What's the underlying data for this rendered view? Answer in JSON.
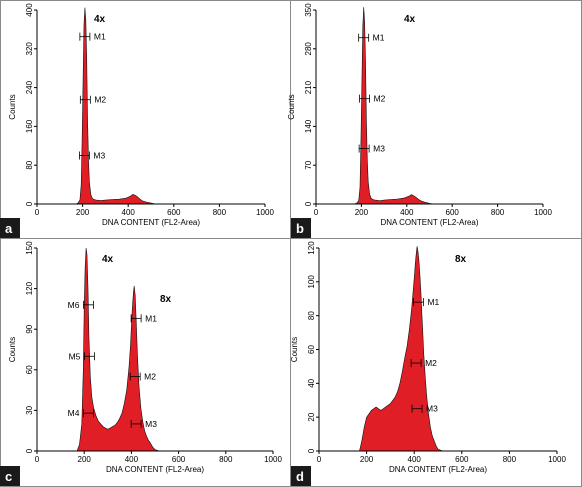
{
  "chart_data": [
    {
      "panel": "a",
      "type": "area",
      "xlabel": "DNA CONTENT (FL2-Area)",
      "ylabel": "Counts",
      "xlim": [
        0,
        1000
      ],
      "ylim": [
        0,
        400
      ],
      "x_ticks": [
        0,
        200,
        400,
        600,
        800,
        1000
      ],
      "y_ticks": [
        0,
        80,
        160,
        240,
        320,
        400
      ],
      "annotations": [
        "4x"
      ],
      "series": [
        {
          "x": [
            170,
            180,
            188,
            194,
            198,
            202,
            206,
            210,
            214,
            218,
            222,
            226,
            230,
            236,
            242,
            250,
            260,
            280,
            300,
            330,
            360,
            390,
            410,
            420,
            430,
            440,
            450,
            460,
            480,
            500,
            520
          ],
          "y": [
            0,
            2,
            8,
            40,
            130,
            260,
            370,
            405,
            380,
            300,
            170,
            90,
            45,
            20,
            12,
            9,
            8,
            7,
            8,
            9,
            10,
            12,
            16,
            20,
            18,
            15,
            11,
            7,
            4,
            2,
            0
          ]
        }
      ],
      "markers": [
        {
          "label": "M1",
          "x": 210,
          "y": 345
        },
        {
          "label": "M2",
          "x": 212,
          "y": 215
        },
        {
          "label": "M3",
          "x": 208,
          "y": 100
        }
      ]
    },
    {
      "panel": "b",
      "type": "area",
      "xlabel": "DNA CONTENT (FL2-Area)",
      "ylabel": "Counts",
      "xlim": [
        0,
        1000
      ],
      "ylim": [
        0,
        350
      ],
      "x_ticks": [
        0,
        200,
        400,
        600,
        800,
        1000
      ],
      "y_ticks": [
        0,
        70,
        140,
        210,
        280,
        350
      ],
      "annotations": [
        "4x"
      ],
      "series": [
        {
          "x": [
            170,
            180,
            188,
            194,
            198,
            202,
            206,
            210,
            214,
            218,
            222,
            226,
            230,
            236,
            242,
            250,
            260,
            280,
            300,
            330,
            360,
            390,
            410,
            420,
            430,
            440,
            450,
            460,
            480,
            500,
            520
          ],
          "y": [
            0,
            2,
            6,
            30,
            110,
            220,
            320,
            355,
            330,
            260,
            150,
            80,
            40,
            18,
            11,
            8,
            7,
            6,
            7,
            8,
            9,
            11,
            14,
            17,
            15,
            12,
            9,
            6,
            3,
            1,
            0
          ]
        }
      ],
      "markers": [
        {
          "label": "M1",
          "x": 210,
          "y": 300
        },
        {
          "label": "M2",
          "x": 214,
          "y": 190
        },
        {
          "label": "M3",
          "x": 212,
          "y": 100
        }
      ]
    },
    {
      "panel": "c",
      "type": "area",
      "xlabel": "DNA CONTENT (FL2-Area)",
      "ylabel": "Counts",
      "xlim": [
        0,
        1000
      ],
      "ylim": [
        0,
        150
      ],
      "x_ticks": [
        0,
        200,
        400,
        600,
        800,
        1000
      ],
      "y_ticks": [
        0,
        30,
        60,
        90,
        120,
        150
      ],
      "annotations": [
        "4x",
        "8x"
      ],
      "series": [
        {
          "x": [
            170,
            180,
            190,
            196,
            200,
            204,
            208,
            212,
            216,
            220,
            226,
            232,
            240,
            250,
            260,
            270,
            280,
            290,
            300,
            310,
            320,
            330,
            340,
            350,
            360,
            370,
            380,
            390,
            396,
            400,
            404,
            408,
            412,
            416,
            420,
            426,
            432,
            440,
            448,
            456,
            464,
            472,
            480,
            490,
            500,
            520
          ],
          "y": [
            0,
            5,
            20,
            60,
            105,
            135,
            150,
            145,
            120,
            85,
            55,
            40,
            32,
            26,
            22,
            20,
            18,
            17,
            16,
            17,
            18,
            19,
            21,
            24,
            28,
            35,
            45,
            62,
            78,
            92,
            105,
            116,
            122,
            115,
            98,
            70,
            48,
            32,
            22,
            15,
            11,
            8,
            6,
            3,
            1,
            0
          ]
        }
      ],
      "markers": [
        {
          "label": "M6",
          "x": 218,
          "y": 108
        },
        {
          "label": "M5",
          "x": 222,
          "y": 70
        },
        {
          "label": "M4",
          "x": 218,
          "y": 28
        },
        {
          "label": "M1",
          "x": 420,
          "y": 98
        },
        {
          "label": "M2",
          "x": 416,
          "y": 55
        },
        {
          "label": "M3",
          "x": 420,
          "y": 20
        }
      ]
    },
    {
      "panel": "d",
      "type": "area",
      "xlabel": "DNA CONTENT (FL2-Area)",
      "ylabel": "Counts",
      "xlim": [
        0,
        1000
      ],
      "ylim": [
        0,
        120
      ],
      "x_ticks": [
        0,
        200,
        400,
        600,
        800,
        1000
      ],
      "y_ticks": [
        0,
        20,
        40,
        60,
        80,
        100,
        120
      ],
      "annotations": [
        "8x"
      ],
      "series": [
        {
          "x": [
            170,
            180,
            190,
            200,
            210,
            220,
            230,
            240,
            250,
            260,
            270,
            280,
            290,
            300,
            310,
            320,
            330,
            340,
            350,
            360,
            370,
            380,
            390,
            396,
            400,
            404,
            408,
            412,
            416,
            420,
            424,
            428,
            432,
            436,
            440,
            446,
            452,
            460,
            468,
            476,
            484,
            492,
            500,
            520
          ],
          "y": [
            0,
            6,
            14,
            20,
            22,
            24,
            25,
            26,
            25,
            24,
            25,
            26,
            27,
            28,
            30,
            32,
            35,
            40,
            47,
            55,
            62,
            72,
            85,
            95,
            102,
            110,
            116,
            121,
            118,
            112,
            104,
            94,
            82,
            70,
            58,
            45,
            33,
            22,
            14,
            9,
            6,
            3,
            1,
            0
          ]
        }
      ],
      "markers": [
        {
          "label": "M1",
          "x": 418,
          "y": 88
        },
        {
          "label": "M2",
          "x": 408,
          "y": 52
        },
        {
          "label": "M3",
          "x": 412,
          "y": 25
        }
      ]
    }
  ],
  "panels": {
    "a": {
      "badge": "a"
    },
    "b": {
      "badge": "b"
    },
    "c": {
      "badge": "c"
    },
    "d": {
      "badge": "d"
    }
  }
}
